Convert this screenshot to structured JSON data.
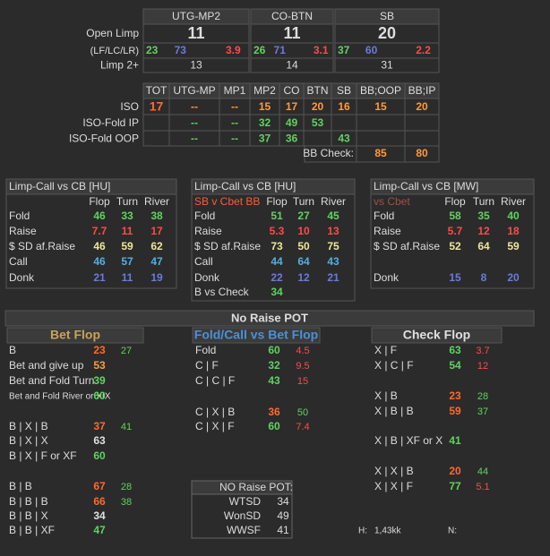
{
  "limp_table": {
    "columns": [
      "UTG-MP2",
      "CO-BTN",
      "SB"
    ],
    "rows": [
      {
        "label": "Open Limp",
        "cells": [
          11,
          11,
          20
        ]
      },
      {
        "label": "(LF/LC/LR)",
        "cells": [
          [
            23,
            73,
            3.9
          ],
          [
            26,
            71,
            3.1
          ],
          [
            37,
            60,
            2.2
          ]
        ]
      },
      {
        "label": "Limp 2+",
        "cells": [
          13,
          14,
          31
        ]
      }
    ]
  },
  "iso_table": {
    "columns": [
      "TOT",
      "UTG-MP",
      "MP1",
      "MP2",
      "CO",
      "BTN",
      "SB",
      "BB;OOP",
      "BB;IP"
    ],
    "rows": [
      {
        "label": "ISO",
        "cells": [
          17,
          "--",
          "--",
          15,
          17,
          20,
          16,
          15,
          20
        ]
      },
      {
        "label": "ISO-Fold IP",
        "cells": [
          null,
          "--",
          "--",
          32,
          49,
          53,
          null,
          null,
          null
        ]
      },
      {
        "label": "ISO-Fold OOP",
        "cells": [
          null,
          "--",
          "--",
          37,
          36,
          null,
          43,
          null,
          null
        ]
      }
    ],
    "bb_check": {
      "label": "BB Check:",
      "cells": [
        85,
        80
      ]
    }
  },
  "panels": [
    {
      "title": "Limp-Call  vs CB [HU]",
      "columns": [
        "Flop",
        "Turn",
        "River"
      ],
      "rows": [
        {
          "label": "Fold",
          "cells": [
            46,
            33,
            38
          ]
        },
        {
          "label": "Raise",
          "cells": [
            7.7,
            11,
            17
          ]
        },
        {
          "label": "$ SD af.Raise",
          "cells": [
            46,
            59,
            62
          ]
        },
        {
          "label": "Call",
          "cells": [
            46,
            57,
            47
          ]
        },
        {
          "label": "Donk",
          "cells": [
            21,
            11,
            19
          ]
        }
      ]
    },
    {
      "title": "Limp-Call  vs CB [HU]",
      "subtitle": "SB v Cbet BB",
      "columns": [
        "Flop",
        "Turn",
        "River"
      ],
      "rows": [
        {
          "label": "Fold",
          "cells": [
            51,
            27,
            45
          ]
        },
        {
          "label": "Raise",
          "cells": [
            5.3,
            10,
            13
          ]
        },
        {
          "label": "$ SD af.Raise",
          "cells": [
            73,
            50,
            75
          ]
        },
        {
          "label": "Call",
          "cells": [
            44,
            64,
            43
          ]
        },
        {
          "label": "Donk",
          "cells": [
            22,
            12,
            21
          ]
        },
        {
          "label": "B vs Check",
          "cells": [
            34
          ]
        }
      ]
    },
    {
      "title": "Limp-Call  vs CB [MW]",
      "subtitle": "vs Cbet",
      "columns": [
        "Flop",
        "Turn",
        "River"
      ],
      "rows": [
        {
          "label": "Fold",
          "cells": [
            58,
            35,
            40
          ]
        },
        {
          "label": "Raise",
          "cells": [
            5.7,
            12,
            18
          ]
        },
        {
          "label": "$ SD af.Raise",
          "cells": [
            52,
            64,
            59
          ]
        },
        {
          "label": "Donk",
          "cells": [
            15,
            8,
            20
          ]
        }
      ]
    }
  ],
  "section_title": "No Raise POT",
  "bet_flop": {
    "title": "Bet Flop",
    "rows": [
      {
        "label": "B",
        "cells": [
          23,
          27
        ]
      },
      {
        "label": "Bet and give up",
        "cells": [
          53
        ]
      },
      {
        "label": "Bet and Fold Turn",
        "cells": [
          39
        ]
      },
      {
        "label": "Bet and Fold River or XIX",
        "cells": [
          60
        ]
      },
      {
        "label": "B | X | B",
        "cells": [
          37,
          41
        ]
      },
      {
        "label": "B | X | X",
        "cells": [
          63
        ]
      },
      {
        "label": "B | X | F or XF",
        "cells": [
          60
        ]
      },
      {
        "label": "B | B",
        "cells": [
          67,
          28
        ]
      },
      {
        "label": "B | B | B",
        "cells": [
          66,
          38
        ]
      },
      {
        "label": "B | B | X",
        "cells": [
          34
        ]
      },
      {
        "label": "B | B | XF",
        "cells": [
          47
        ]
      }
    ]
  },
  "fold_call": {
    "title": "Fold/Call vs Bet Flop",
    "rows": [
      {
        "label": "Fold",
        "cells": [
          60,
          4.5
        ]
      },
      {
        "label": "C | F",
        "cells": [
          32,
          9.5
        ]
      },
      {
        "label": "C | C | F",
        "cells": [
          43,
          15
        ]
      },
      {
        "label": "C | X | B",
        "cells": [
          36,
          50
        ]
      },
      {
        "label": "C | X | F",
        "cells": [
          60,
          7.4
        ]
      }
    ]
  },
  "check_flop": {
    "title": "Check  Flop",
    "rows": [
      {
        "label": "X | F",
        "cells": [
          63,
          3.7
        ]
      },
      {
        "label": "X | C | F",
        "cells": [
          54,
          12
        ]
      },
      {
        "label": "X | B",
        "cells": [
          23,
          28
        ]
      },
      {
        "label": "X | B | B",
        "cells": [
          59,
          37
        ]
      },
      {
        "label": "X | B |  XF or X",
        "cells": [
          41
        ]
      },
      {
        "label": "X | X | B",
        "cells": [
          20,
          44
        ]
      },
      {
        "label": "X | X | F",
        "cells": [
          77,
          5.1
        ]
      }
    ]
  },
  "summary": {
    "title": "NO Raise POT:",
    "rows": [
      {
        "label": "WTSD",
        "value": 34
      },
      {
        "label": "WonSD",
        "value": 49
      },
      {
        "label": "WWSF",
        "value": 41
      }
    ]
  },
  "footer": {
    "h_label": "H:",
    "h_value": "1,43kk",
    "n_label": "N:"
  }
}
